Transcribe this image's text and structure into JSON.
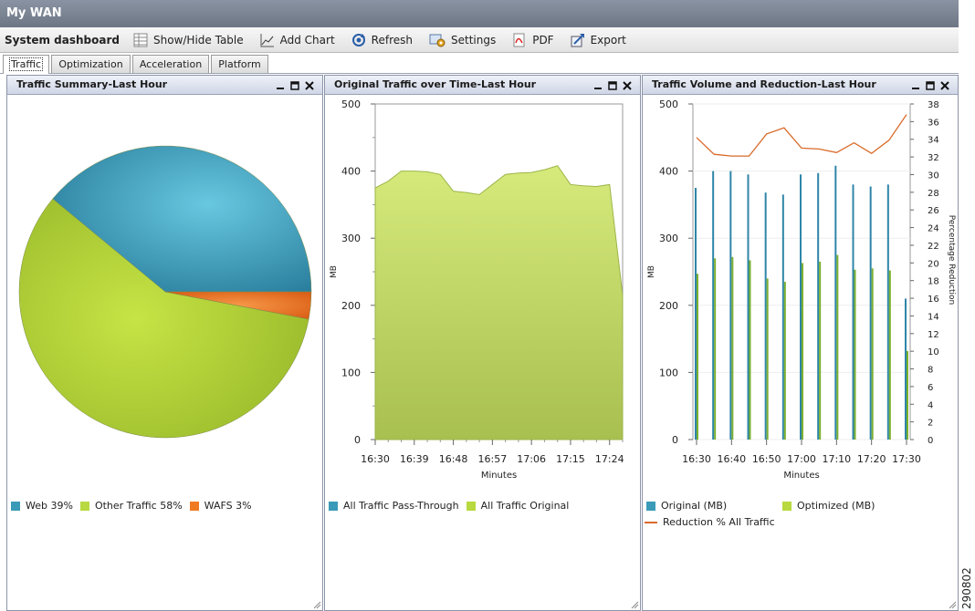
{
  "window": {
    "title": "My WAN"
  },
  "toolbar": {
    "name": "System dashboard",
    "buttons": [
      {
        "label": "Show/Hide Table",
        "icon": "table-icon"
      },
      {
        "label": "Add Chart",
        "icon": "chart-icon"
      },
      {
        "label": "Refresh",
        "icon": "refresh-icon"
      },
      {
        "label": "Settings",
        "icon": "settings-icon"
      },
      {
        "label": "PDF",
        "icon": "pdf-icon"
      },
      {
        "label": "Export",
        "icon": "export-icon"
      }
    ]
  },
  "tabs": [
    {
      "label": "Traffic",
      "active": true
    },
    {
      "label": "Optimization",
      "active": false
    },
    {
      "label": "Acceleration",
      "active": false
    },
    {
      "label": "Platform",
      "active": false
    }
  ],
  "panels": {
    "summary": {
      "title": "Traffic Summary-Last Hour"
    },
    "original": {
      "title": "Original Traffic over Time-Last Hour"
    },
    "volume": {
      "title": "Traffic Volume and Reduction-Last Hour"
    }
  },
  "colors": {
    "web": "#3a9ab8",
    "other": "#b8d93f",
    "wafs": "#f07a22",
    "reduction": "#d96a2a"
  },
  "figure_id": "290802",
  "chart_data": [
    {
      "type": "pie",
      "title": "Traffic Summary-Last Hour",
      "slices": [
        {
          "label": "Web 39%",
          "value": 39
        },
        {
          "label": "Other Traffic 58%",
          "value": 58
        },
        {
          "label": "WAFS 3%",
          "value": 3
        }
      ]
    },
    {
      "type": "area",
      "title": "Original Traffic over Time-Last Hour",
      "xlabel": "Minutes",
      "ylabel": "MB",
      "ylim": [
        0,
        500
      ],
      "yticks": [
        "0",
        "100",
        "200",
        "300",
        "400",
        "500"
      ],
      "xticks": [
        "16:30",
        "16:39",
        "16:48",
        "16:57",
        "17:06",
        "17:15",
        "17:24"
      ],
      "x": [
        "16:30",
        "16:33",
        "16:36",
        "16:39",
        "16:42",
        "16:45",
        "16:48",
        "16:51",
        "16:54",
        "16:57",
        "17:00",
        "17:03",
        "17:06",
        "17:09",
        "17:12",
        "17:15",
        "17:18",
        "17:21",
        "17:24",
        "17:27"
      ],
      "series": [
        {
          "name": "All Traffic Pass-Through",
          "values": [
            0,
            0,
            0,
            0,
            0,
            0,
            0,
            0,
            0,
            0,
            0,
            0,
            0,
            0,
            0,
            0,
            0,
            0,
            0,
            0
          ]
        },
        {
          "name": "All Traffic Original",
          "values": [
            375,
            385,
            400,
            400,
            399,
            395,
            370,
            368,
            365,
            380,
            395,
            397,
            398,
            402,
            408,
            380,
            378,
            377,
            380,
            215
          ]
        }
      ]
    },
    {
      "type": "bar",
      "title": "Traffic Volume and Reduction-Last Hour",
      "xlabel": "Minutes",
      "ylabel": "MB",
      "y2label": "Percentage Reduction",
      "ylim": [
        0,
        500
      ],
      "y2lim": [
        0,
        38
      ],
      "yticks": [
        "0",
        "100",
        "200",
        "300",
        "400",
        "500"
      ],
      "y2ticks": [
        "0",
        "2",
        "4",
        "6",
        "8",
        "10",
        "12",
        "14",
        "16",
        "18",
        "20",
        "22",
        "24",
        "26",
        "28",
        "30",
        "32",
        "34",
        "36",
        "38"
      ],
      "xticks": [
        "16:30",
        "16:40",
        "16:50",
        "17:00",
        "17:10",
        "17:20",
        "17:30"
      ],
      "categories": [
        "16:30",
        "16:35",
        "16:40",
        "16:45",
        "16:50",
        "16:55",
        "17:00",
        "17:05",
        "17:10",
        "17:15",
        "17:20",
        "17:25",
        "17:30"
      ],
      "series": [
        {
          "name": "Original (MB)",
          "values": [
            375,
            400,
            400,
            395,
            368,
            365,
            395,
            397,
            408,
            380,
            377,
            380,
            210
          ]
        },
        {
          "name": "Optimized (MB)",
          "values": [
            247,
            270,
            272,
            267,
            240,
            235,
            263,
            265,
            275,
            253,
            255,
            252,
            132
          ]
        },
        {
          "name": "Reduction % All Traffic",
          "values": [
            34.2,
            32.3,
            32.1,
            32.1,
            34.6,
            35.3,
            33,
            32.9,
            32.5,
            33.6,
            32.4,
            33.9,
            36.8
          ]
        }
      ]
    }
  ],
  "legends": {
    "summary": [
      "Web 39%",
      "Other Traffic 58%",
      "WAFS 3%"
    ],
    "original": [
      "All Traffic Pass-Through",
      "All Traffic Original"
    ],
    "volume": [
      "Original (MB)",
      "Optimized (MB)",
      "Reduction % All Traffic"
    ]
  }
}
